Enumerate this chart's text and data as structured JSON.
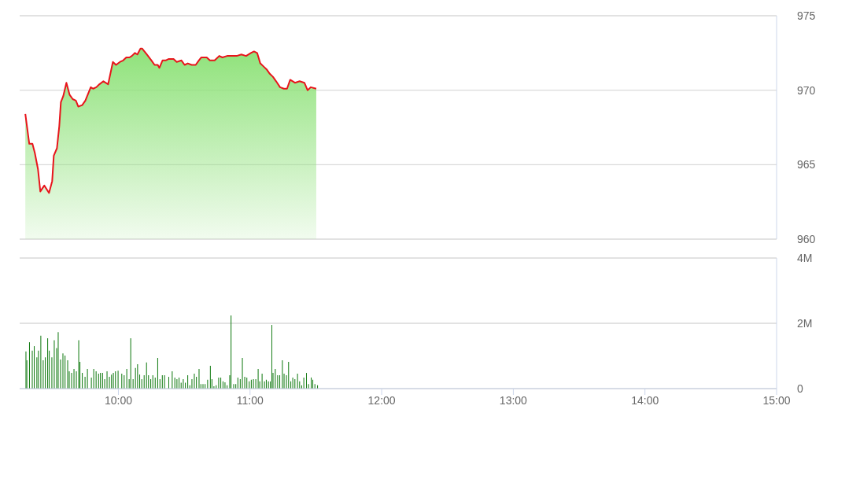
{
  "chart_data": [
    {
      "type": "area",
      "xlim": [
        9.25,
        15
      ],
      "ylim": [
        960,
        975
      ],
      "yticks": [
        960,
        965,
        970,
        975
      ],
      "grid": "y",
      "tick_labels": "y",
      "x": [
        9.293,
        9.323,
        9.347,
        9.365,
        9.389,
        9.407,
        9.437,
        9.473,
        9.497,
        9.509,
        9.533,
        9.551,
        9.563,
        9.581,
        9.605,
        9.629,
        9.653,
        9.677,
        9.695,
        9.725,
        9.749,
        9.79,
        9.808,
        9.832,
        9.856,
        9.886,
        9.922,
        9.958,
        9.982,
        10.012,
        10.036,
        10.06,
        10.084,
        10.102,
        10.126,
        10.144,
        10.168,
        10.18,
        10.216,
        10.251,
        10.275,
        10.299,
        10.311,
        10.335,
        10.359,
        10.383,
        10.419,
        10.443,
        10.479,
        10.503,
        10.527,
        10.557,
        10.587,
        10.611,
        10.629,
        10.671,
        10.695,
        10.731,
        10.766,
        10.79,
        10.826,
        10.862,
        10.898,
        10.934,
        10.97,
        11.006,
        11.03,
        11.054,
        11.078,
        11.102,
        11.126,
        11.15,
        11.174,
        11.198,
        11.228,
        11.257,
        11.281,
        11.305,
        11.341,
        11.377,
        11.413,
        11.437,
        11.461,
        11.503
      ],
      "series": [
        {
          "color": "#e8141b",
          "values": [
            968.4,
            966.4,
            966.4,
            965.8,
            964.7,
            963.2,
            963.6,
            963.1,
            963.9,
            965.6,
            966.1,
            967.6,
            969.2,
            969.6,
            970.5,
            969.7,
            969.4,
            969.3,
            968.9,
            969.0,
            969.3,
            970.2,
            970.1,
            970.2,
            970.4,
            970.6,
            970.4,
            971.9,
            971.7,
            971.9,
            972.0,
            972.2,
            972.2,
            972.3,
            972.5,
            972.4,
            972.8,
            972.8,
            972.4,
            972.0,
            971.7,
            971.7,
            971.5,
            972.0,
            972.0,
            972.1,
            972.1,
            971.9,
            972.0,
            971.7,
            971.8,
            971.7,
            971.7,
            972.0,
            972.2,
            972.2,
            972.0,
            972.0,
            972.3,
            972.2,
            972.3,
            972.3,
            972.3,
            972.4,
            972.3,
            972.5,
            972.6,
            972.5,
            971.8,
            971.6,
            971.4,
            971.1,
            970.9,
            970.6,
            970.2,
            970.1,
            970.1,
            970.7,
            970.5,
            970.6,
            970.5,
            970.0,
            970.2,
            970.1
          ]
        }
      ]
    },
    {
      "type": "bar",
      "color": "#177d17",
      "xlim": [
        9.25,
        15
      ],
      "xticks": [
        {
          "value": 10,
          "label": "10:00"
        },
        {
          "value": 11,
          "label": "11:00"
        },
        {
          "value": 12,
          "label": "12:00"
        },
        {
          "value": 13,
          "label": "13:00"
        },
        {
          "value": 14,
          "label": "14:00"
        },
        {
          "value": 15,
          "label": "15:00"
        }
      ],
      "ylim": [
        0,
        4
      ],
      "yticks": [
        0,
        {
          "value": 2,
          "label": "2M"
        },
        {
          "value": 4,
          "label": "4M"
        }
      ],
      "grid": "y",
      "x": [
        9.298,
        9.305,
        9.325,
        9.346,
        9.361,
        9.381,
        9.393,
        9.411,
        9.429,
        9.445,
        9.463,
        9.475,
        9.495,
        9.513,
        9.531,
        9.543,
        9.561,
        9.579,
        9.595,
        9.615,
        9.627,
        9.645,
        9.663,
        9.681,
        9.699,
        9.708,
        9.726,
        9.747,
        9.765,
        9.795,
        9.813,
        9.831,
        9.85,
        9.864,
        9.88,
        9.896,
        9.914,
        9.932,
        9.948,
        9.962,
        9.978,
        9.998,
        10.026,
        10.044,
        10.064,
        10.082,
        10.094,
        10.112,
        10.13,
        10.146,
        10.162,
        10.178,
        10.196,
        10.214,
        10.229,
        10.246,
        10.262,
        10.28,
        10.299,
        10.316,
        10.334,
        10.351,
        10.383,
        10.409,
        10.429,
        10.445,
        10.461,
        10.477,
        10.493,
        10.509,
        10.527,
        10.543,
        10.559,
        10.577,
        10.593,
        10.613,
        10.627,
        10.643,
        10.659,
        10.678,
        10.699,
        10.711,
        10.726,
        10.743,
        10.762,
        10.778,
        10.795,
        10.81,
        10.826,
        10.846,
        10.856,
        10.876,
        10.892,
        10.908,
        10.926,
        10.942,
        10.96,
        10.976,
        10.994,
        11.01,
        11.026,
        11.044,
        11.062,
        11.074,
        11.092,
        11.11,
        11.124,
        11.14,
        11.154,
        11.166,
        11.175,
        11.192,
        11.21,
        11.226,
        11.246,
        11.259,
        11.277,
        11.293,
        11.31,
        11.325,
        11.341,
        11.361,
        11.377,
        11.393,
        11.409,
        11.429,
        11.445,
        11.465,
        11.477,
        11.493,
        11.513
      ],
      "values": [
        1.14,
        0.87,
        1.42,
        1.16,
        1.3,
        0.96,
        1.16,
        1.62,
        0.87,
        0.96,
        1.54,
        1.16,
        0.96,
        1.48,
        1.24,
        1.73,
        0.89,
        1.08,
        1.01,
        0.87,
        0.53,
        0.48,
        0.6,
        0.53,
        1.48,
        0.82,
        0.48,
        0.36,
        0.6,
        0.34,
        0.6,
        0.53,
        0.46,
        0.48,
        0.48,
        0.29,
        0.53,
        0.36,
        0.43,
        0.48,
        0.53,
        0.55,
        0.46,
        0.41,
        0.6,
        0.29,
        1.54,
        0.29,
        0.63,
        0.75,
        0.43,
        0.29,
        0.41,
        0.8,
        0.41,
        0.29,
        0.41,
        0.34,
        0.94,
        0.29,
        0.41,
        0.41,
        0.36,
        0.53,
        0.34,
        0.29,
        0.34,
        0.18,
        0.29,
        0.18,
        0.41,
        0.1,
        0.29,
        0.46,
        0.36,
        0.6,
        0.14,
        0.14,
        0.14,
        0.27,
        0.7,
        0.29,
        0.07,
        0.1,
        0.34,
        0.34,
        0.22,
        0.19,
        0.1,
        0.41,
        2.24,
        0.14,
        0.14,
        0.34,
        0.29,
        0.94,
        0.36,
        0.34,
        0.22,
        0.27,
        0.29,
        0.29,
        0.6,
        0.22,
        0.46,
        0.22,
        0.27,
        0.22,
        0.22,
        1.95,
        0.48,
        0.6,
        0.41,
        0.41,
        0.87,
        0.46,
        0.41,
        0.82,
        0.22,
        0.34,
        0.29,
        0.46,
        0.22,
        0.1,
        0.34,
        0.48,
        0.14,
        0.34,
        0.27,
        0.14,
        0.1
      ]
    }
  ]
}
